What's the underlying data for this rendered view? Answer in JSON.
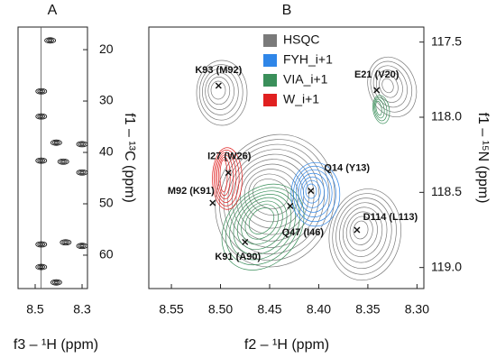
{
  "chart_data": [
    {
      "type": "contour",
      "title": "A",
      "xlabel": "f3 – ¹H (ppm)",
      "ylabel": "f1 – ¹³C (ppm)",
      "xlim": [
        8.573,
        8.277
      ],
      "ylim": [
        15.6,
        66.5
      ],
      "xticks": [
        8.5,
        8.3
      ],
      "yticks": [
        20,
        30,
        40,
        50,
        60
      ],
      "guide_x": 8.475,
      "peaks": {
        "x": [
          8.436,
          8.474,
          8.474,
          8.41,
          8.3,
          8.38,
          8.474,
          8.3,
          8.474,
          8.37,
          8.3,
          8.474,
          8.41
        ],
        "y": [
          18.2,
          28.1,
          33.0,
          38.1,
          38.4,
          41.8,
          41.6,
          43.9,
          57.9,
          57.5,
          58.2,
          62.3,
          65.3
        ]
      }
    },
    {
      "type": "contour",
      "title": "B",
      "xlabel": "f2 – ¹H (ppm)",
      "ylabel": "f1 – ¹⁵N (ppm)",
      "xlim": [
        8.573,
        8.293
      ],
      "ylim": [
        117.4,
        119.14
      ],
      "xticks": [
        8.55,
        {
          "value": 8.5,
          "label": "8.50"
        },
        8.45,
        {
          "value": 8.4,
          "label": "8.40"
        },
        8.35,
        {
          "value": 8.3,
          "label": "8.30"
        }
      ],
      "yticks": [
        117.5,
        {
          "value": 118,
          "label": "118.0"
        },
        118.5,
        {
          "value": 119,
          "label": "119.0"
        }
      ],
      "legend": [
        {
          "name": "HSQC",
          "color": "#7a7a7a"
        },
        {
          "name": "FYH_i+1",
          "color": "#2f86e8"
        },
        {
          "name": "VIA_i+1",
          "color": "#3a8f5a"
        },
        {
          "name": "W_i+1",
          "color": "#e02020"
        }
      ],
      "peaks": {
        "labels": [
          "K93 (M92)",
          "E21 (V20)",
          "I27 (W26)",
          "Q14 (Y13)",
          "M92 (K91)",
          "Q47 (I46)",
          "D114 (L113)",
          "K91 (A90)"
        ],
        "x": [
          8.502,
          8.341,
          8.492,
          8.408,
          8.508,
          8.429,
          8.361,
          8.475
        ],
        "y": [
          117.79,
          117.82,
          118.37,
          118.49,
          118.57,
          118.59,
          118.75,
          118.83
        ]
      }
    }
  ]
}
